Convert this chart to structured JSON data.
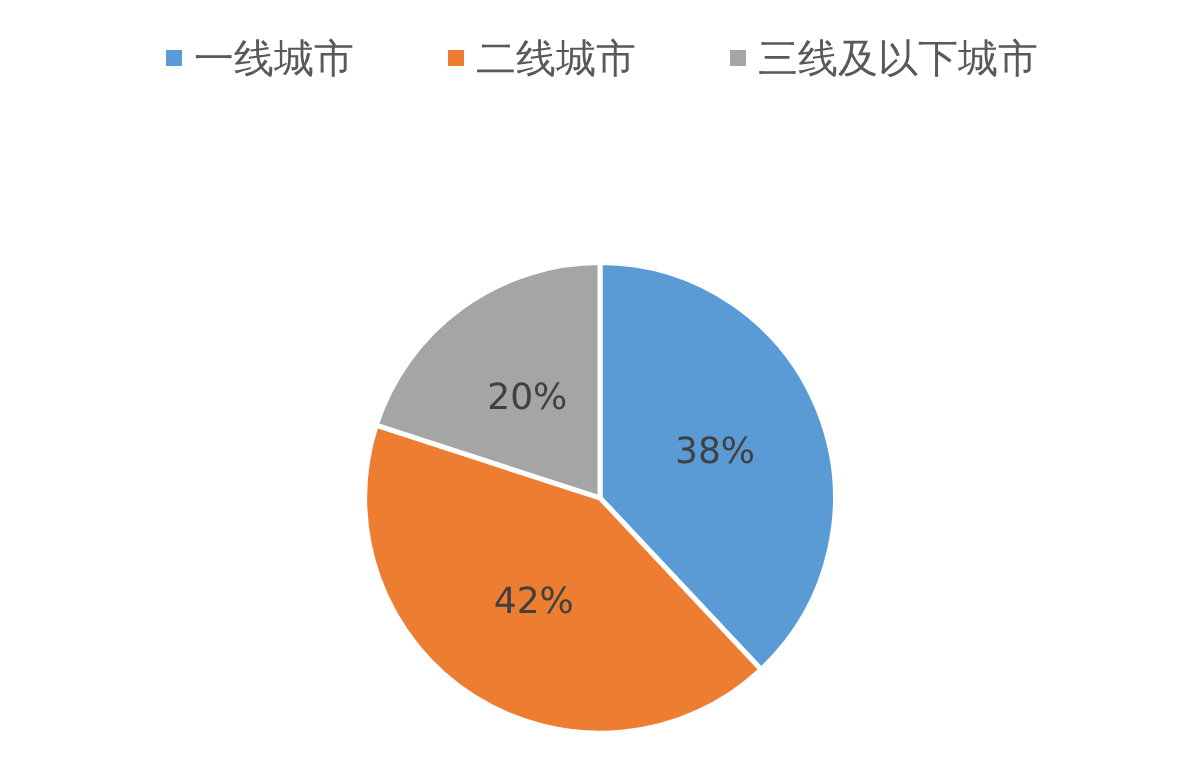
{
  "chart_data": {
    "type": "pie",
    "categories": [
      "一线城市",
      "二线城市",
      "三线及以下城市"
    ],
    "values": [
      38,
      42,
      20
    ],
    "colors": [
      "#5b9bd5",
      "#ed7d31",
      "#a5a5a5"
    ],
    "value_labels": [
      "38%",
      "42%",
      "20%"
    ],
    "legend": "top"
  }
}
